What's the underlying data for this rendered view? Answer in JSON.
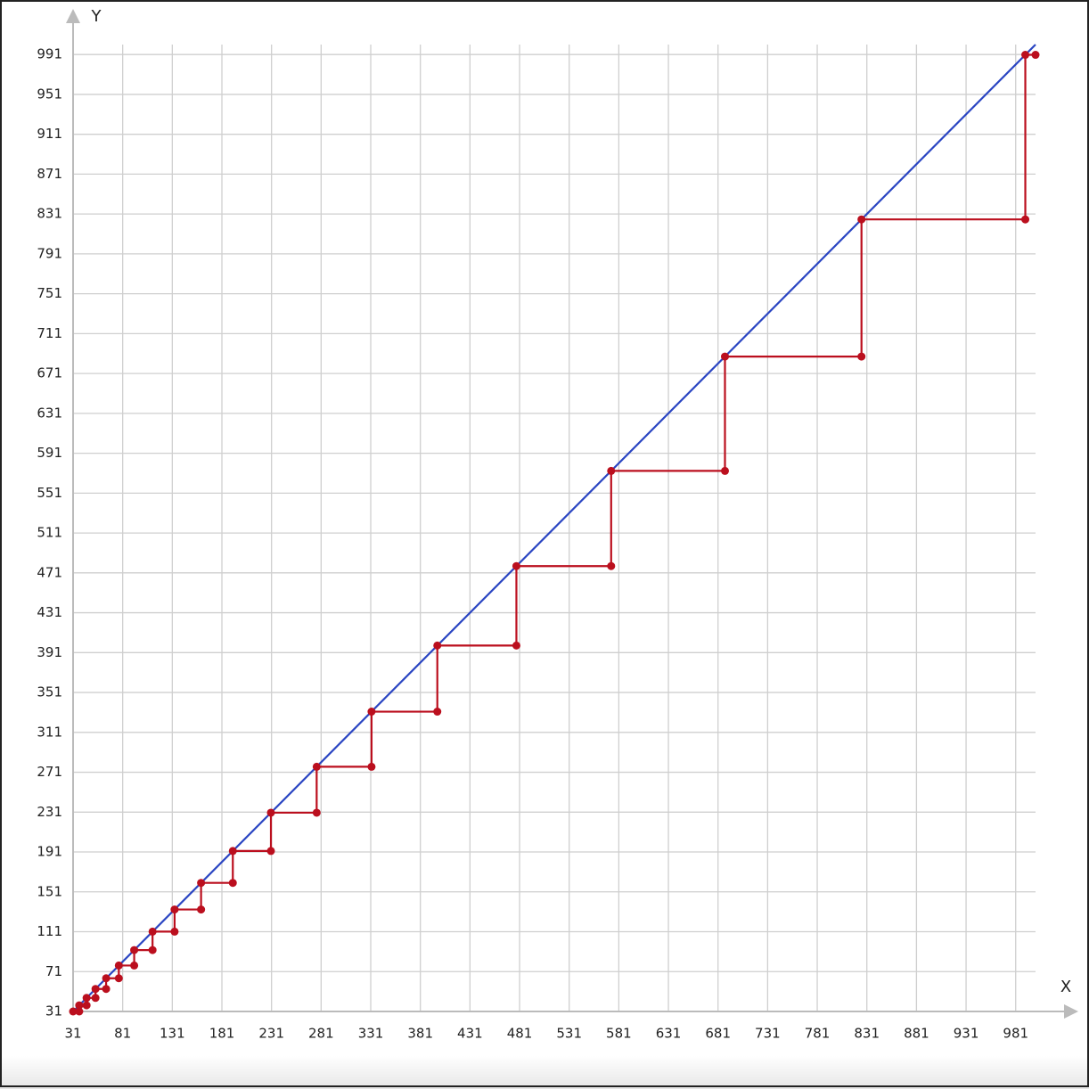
{
  "chart_data": {
    "type": "line",
    "x_label": "X",
    "y_label": "Y",
    "xlim": [
      31,
      1001
    ],
    "ylim": [
      31,
      1001
    ],
    "xticks": [
      31,
      81,
      131,
      181,
      231,
      281,
      331,
      381,
      431,
      481,
      531,
      581,
      631,
      681,
      731,
      781,
      831,
      881,
      931,
      981
    ],
    "yticks": [
      31,
      71,
      111,
      151,
      191,
      231,
      271,
      311,
      351,
      391,
      431,
      471,
      511,
      551,
      591,
      631,
      671,
      711,
      751,
      791,
      831,
      871,
      911,
      951,
      991
    ],
    "grid": true,
    "series": [
      {
        "color": "#2a45c2",
        "markers": false,
        "x": [
          31,
          1001
        ],
        "values": [
          31,
          1001
        ]
      },
      {
        "color": "#bb0f1e",
        "markers": true,
        "x": [
          31,
          37.2,
          37.2,
          44.6,
          44.6,
          53.6,
          53.6,
          64.3,
          64.3,
          77.1,
          77.1,
          92.6,
          92.6,
          111.1,
          111.1,
          133.3,
          133.3,
          160,
          160,
          192,
          192,
          230.4,
          230.4,
          276.5,
          276.5,
          331.8,
          331.8,
          398.1,
          398.1,
          477.8,
          477.8,
          573.3,
          573.3,
          688,
          688,
          825.6,
          825.6,
          990.7,
          990.7,
          1001
        ],
        "values": [
          31,
          31,
          37.2,
          37.2,
          44.6,
          44.6,
          53.6,
          53.6,
          64.3,
          64.3,
          77.1,
          77.1,
          92.6,
          92.6,
          111.1,
          111.1,
          133.3,
          133.3,
          160,
          160,
          192,
          192,
          230.4,
          230.4,
          276.5,
          276.5,
          331.8,
          331.8,
          398.1,
          398.1,
          477.8,
          477.8,
          573.3,
          573.3,
          688,
          688,
          825.6,
          825.6,
          990.7,
          990.7
        ]
      }
    ]
  }
}
